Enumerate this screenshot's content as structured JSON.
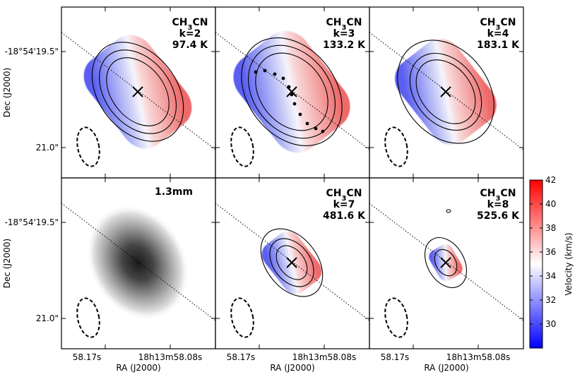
{
  "chart_data": {
    "type": "heatmap",
    "description": "Six-panel velocity maps of CH3CN K-ladder emission and 1.3mm continuum",
    "xlabel": "RA (J2000)",
    "ylabel": "Dec (J2000)",
    "x_ticks": [
      "58.17s",
      "18h13m58.08s"
    ],
    "y_ticks": [
      "-18°54'19.5\"",
      "21.0\""
    ],
    "colorbar": {
      "label": "Velocity (km/s)",
      "min": 28,
      "max": 42,
      "ticks": [
        "30",
        "32",
        "34",
        "36",
        "38",
        "40",
        "42"
      ],
      "colormap": "bwr",
      "low_color": "#0000ff",
      "mid_color": "#ffffff",
      "high_color": "#ff0000"
    },
    "panels": [
      {
        "id": "k2",
        "line1": "CH",
        "sub": "3",
        "line1b": "CN",
        "line2": "k=2",
        "line3": "97.4 K",
        "kind": "velocity"
      },
      {
        "id": "k3",
        "line1": "CH",
        "sub": "3",
        "line1b": "CN",
        "line2": "k=3",
        "line3": "133.2 K",
        "kind": "velocity"
      },
      {
        "id": "k4",
        "line1": "CH",
        "sub": "3",
        "line1b": "CN",
        "line2": "k=4",
        "line3": "183.1 K",
        "kind": "velocity"
      },
      {
        "id": "cont",
        "label": "1.3mm",
        "kind": "continuum"
      },
      {
        "id": "k7",
        "line1": "CH",
        "sub": "3",
        "line1b": "CN",
        "line2": "k=7",
        "line3": "481.6 K",
        "kind": "velocity"
      },
      {
        "id": "k8",
        "line1": "CH",
        "sub": "3",
        "line1b": "CN",
        "line2": "k=8",
        "line3": "525.6 K",
        "kind": "velocity"
      }
    ],
    "colors": {
      "frame": "#000000",
      "contour": "#000000",
      "marker": "#000000"
    }
  }
}
